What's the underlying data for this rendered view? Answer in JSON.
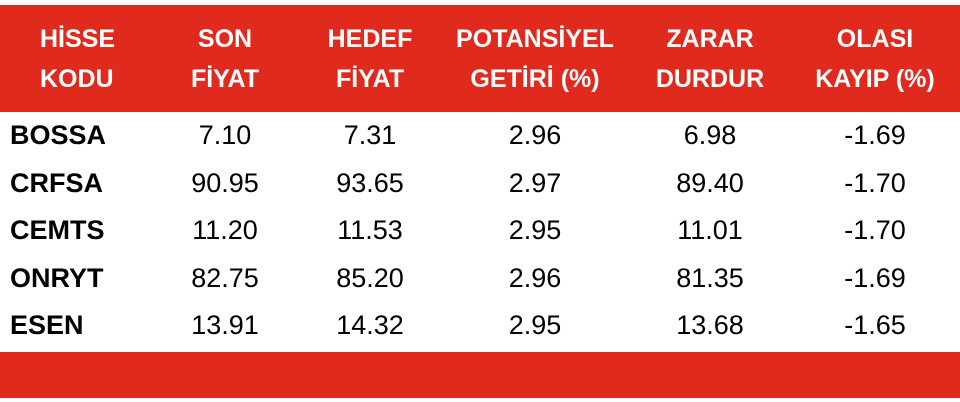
{
  "table": {
    "header": [
      [
        "HİSSE",
        "KODU"
      ],
      [
        "SON",
        "FİYAT"
      ],
      [
        "HEDEF",
        "FİYAT"
      ],
      [
        "POTANSİYEL",
        "GETİRİ (%)"
      ],
      [
        "ZARAR",
        "DURDUR"
      ],
      [
        "OLASI",
        "KAYIP (%)"
      ]
    ],
    "rows": [
      [
        "BOSSA",
        "7.10",
        "7.31",
        "2.96",
        "6.98",
        "-1.69"
      ],
      [
        "CRFSA",
        "90.95",
        "93.65",
        "2.97",
        "89.40",
        "-1.70"
      ],
      [
        "CEMTS",
        "11.20",
        "11.53",
        "2.95",
        "11.01",
        "-1.70"
      ],
      [
        "ONRYT",
        "82.75",
        "85.20",
        "2.96",
        "81.35",
        "-1.69"
      ],
      [
        "ESEN",
        "13.91",
        "14.32",
        "2.95",
        "13.68",
        "-1.65"
      ]
    ]
  }
}
